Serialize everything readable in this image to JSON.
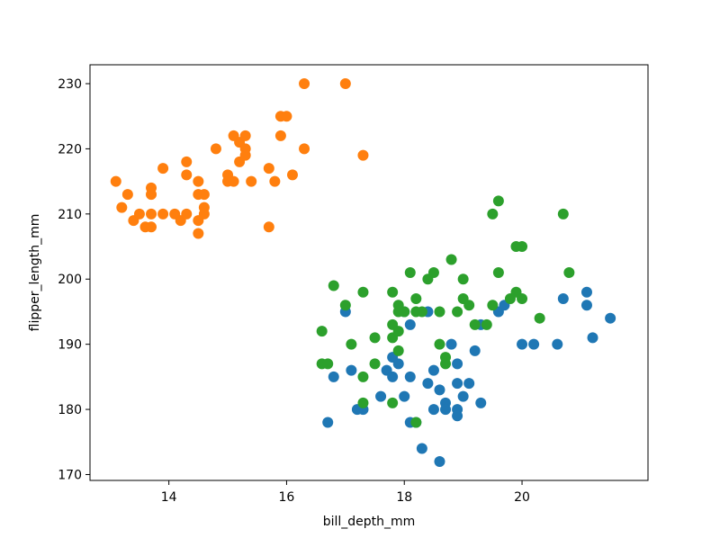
{
  "chart_data": {
    "type": "scatter",
    "xlabel": "bill_depth_mm",
    "ylabel": "flipper_length_mm",
    "xlim": [
      12.66,
      22.14
    ],
    "ylim": [
      169.1,
      232.9
    ],
    "xticks": [
      14,
      16,
      18,
      20
    ],
    "yticks": [
      170,
      180,
      190,
      200,
      210,
      220,
      230
    ],
    "grid": false,
    "legend": "none",
    "series": [
      {
        "color": "#1f77b4",
        "points": [
          [
            17.0,
            195
          ],
          [
            16.7,
            178
          ],
          [
            17.1,
            186
          ],
          [
            16.8,
            185
          ],
          [
            17.3,
            180
          ],
          [
            17.2,
            180
          ],
          [
            17.6,
            182
          ],
          [
            17.7,
            186
          ],
          [
            17.8,
            185
          ],
          [
            17.8,
            188
          ],
          [
            17.9,
            187
          ],
          [
            18.0,
            195
          ],
          [
            18.0,
            182
          ],
          [
            18.1,
            193
          ],
          [
            18.1,
            185
          ],
          [
            18.1,
            178
          ],
          [
            18.2,
            178
          ],
          [
            18.3,
            174
          ],
          [
            18.4,
            184
          ],
          [
            18.4,
            195
          ],
          [
            18.5,
            180
          ],
          [
            18.5,
            186
          ],
          [
            18.6,
            183
          ],
          [
            18.6,
            172
          ],
          [
            18.7,
            181
          ],
          [
            18.7,
            180
          ],
          [
            18.8,
            190
          ],
          [
            18.9,
            184
          ],
          [
            18.9,
            180
          ],
          [
            18.9,
            179
          ],
          [
            18.9,
            187
          ],
          [
            19.0,
            182
          ],
          [
            19.1,
            184
          ],
          [
            19.2,
            189
          ],
          [
            19.3,
            181
          ],
          [
            19.3,
            193
          ],
          [
            19.6,
            195
          ],
          [
            19.7,
            196
          ],
          [
            20.0,
            190
          ],
          [
            20.2,
            190
          ],
          [
            20.6,
            190
          ],
          [
            20.7,
            197
          ],
          [
            21.1,
            198
          ],
          [
            21.1,
            196
          ],
          [
            21.2,
            191
          ],
          [
            21.5,
            194
          ]
        ]
      },
      {
        "color": "#ff7f0e",
        "points": [
          [
            13.1,
            215
          ],
          [
            13.2,
            211
          ],
          [
            13.3,
            213
          ],
          [
            13.4,
            209
          ],
          [
            13.5,
            210
          ],
          [
            13.6,
            208
          ],
          [
            13.7,
            208
          ],
          [
            13.7,
            210
          ],
          [
            13.7,
            214
          ],
          [
            13.7,
            213
          ],
          [
            13.9,
            217
          ],
          [
            13.9,
            210
          ],
          [
            14.1,
            210
          ],
          [
            14.2,
            209
          ],
          [
            14.3,
            210
          ],
          [
            14.3,
            216
          ],
          [
            14.3,
            218
          ],
          [
            14.5,
            213
          ],
          [
            14.5,
            215
          ],
          [
            14.5,
            207
          ],
          [
            14.5,
            209
          ],
          [
            14.6,
            213
          ],
          [
            14.6,
            211
          ],
          [
            14.6,
            210
          ],
          [
            14.8,
            220
          ],
          [
            15.0,
            216
          ],
          [
            15.0,
            215
          ],
          [
            15.1,
            215
          ],
          [
            15.1,
            222
          ],
          [
            15.2,
            221
          ],
          [
            15.2,
            218
          ],
          [
            15.3,
            222
          ],
          [
            15.3,
            220
          ],
          [
            15.3,
            219
          ],
          [
            15.4,
            215
          ],
          [
            15.7,
            217
          ],
          [
            15.7,
            208
          ],
          [
            15.8,
            215
          ],
          [
            15.9,
            225
          ],
          [
            15.9,
            222
          ],
          [
            16.0,
            225
          ],
          [
            16.1,
            216
          ],
          [
            16.3,
            230
          ],
          [
            16.3,
            220
          ],
          [
            17.0,
            230
          ],
          [
            17.3,
            219
          ]
        ]
      },
      {
        "color": "#2ca02c",
        "points": [
          [
            16.6,
            192
          ],
          [
            16.6,
            187
          ],
          [
            16.7,
            187
          ],
          [
            16.8,
            199
          ],
          [
            17.0,
            196
          ],
          [
            17.1,
            190
          ],
          [
            17.3,
            181
          ],
          [
            17.3,
            185
          ],
          [
            17.3,
            198
          ],
          [
            17.5,
            191
          ],
          [
            17.5,
            187
          ],
          [
            17.8,
            198
          ],
          [
            17.8,
            193
          ],
          [
            17.8,
            191
          ],
          [
            17.8,
            181
          ],
          [
            17.9,
            195
          ],
          [
            17.9,
            196
          ],
          [
            17.9,
            192
          ],
          [
            17.9,
            189
          ],
          [
            18.0,
            195
          ],
          [
            18.1,
            201
          ],
          [
            18.2,
            197
          ],
          [
            18.2,
            195
          ],
          [
            18.2,
            178
          ],
          [
            18.3,
            195
          ],
          [
            18.4,
            200
          ],
          [
            18.5,
            201
          ],
          [
            18.6,
            195
          ],
          [
            18.6,
            190
          ],
          [
            18.7,
            188
          ],
          [
            18.7,
            187
          ],
          [
            18.8,
            203
          ],
          [
            18.9,
            195
          ],
          [
            19.0,
            200
          ],
          [
            19.0,
            197
          ],
          [
            19.1,
            196
          ],
          [
            19.2,
            193
          ],
          [
            19.4,
            193
          ],
          [
            19.5,
            210
          ],
          [
            19.5,
            196
          ],
          [
            19.6,
            212
          ],
          [
            19.6,
            201
          ],
          [
            19.8,
            197
          ],
          [
            19.9,
            198
          ],
          [
            19.9,
            205
          ],
          [
            20.0,
            197
          ],
          [
            20.0,
            205
          ],
          [
            20.3,
            194
          ],
          [
            20.7,
            210
          ],
          [
            20.8,
            201
          ]
        ]
      }
    ]
  }
}
